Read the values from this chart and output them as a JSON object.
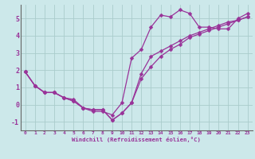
{
  "background_color": "#cce8ea",
  "grid_color": "#aacccc",
  "line_color": "#993399",
  "marker": "D",
  "markersize": 2.5,
  "linewidth": 0.9,
  "xlim": [
    -0.5,
    23.5
  ],
  "ylim": [
    -1.5,
    5.8
  ],
  "xticks": [
    0,
    1,
    2,
    3,
    4,
    5,
    6,
    7,
    8,
    9,
    10,
    11,
    12,
    13,
    14,
    15,
    16,
    17,
    18,
    19,
    20,
    21,
    22,
    23
  ],
  "yticks": [
    -1,
    0,
    1,
    2,
    3,
    4,
    5
  ],
  "xlabel": "Windchill (Refroidissement éolien,°C)",
  "series": [
    [
      1.9,
      1.1,
      0.7,
      0.7,
      0.4,
      0.3,
      -0.2,
      -0.4,
      -0.4,
      -0.6,
      0.1,
      2.7,
      3.2,
      4.5,
      5.2,
      5.1,
      5.5,
      5.3,
      4.5,
      4.5,
      4.4,
      4.4,
      5.0,
      5.3
    ],
    [
      1.9,
      1.1,
      0.7,
      0.7,
      0.4,
      0.2,
      -0.2,
      -0.3,
      -0.3,
      -0.9,
      -0.5,
      0.1,
      1.8,
      2.8,
      3.1,
      3.4,
      3.7,
      4.0,
      4.2,
      4.4,
      4.6,
      4.8,
      4.9,
      5.1
    ],
    [
      1.9,
      1.1,
      0.7,
      0.7,
      0.4,
      0.2,
      -0.2,
      -0.3,
      -0.3,
      -0.9,
      -0.5,
      0.1,
      1.5,
      2.2,
      2.8,
      3.2,
      3.5,
      3.9,
      4.1,
      4.3,
      4.5,
      4.7,
      4.9,
      5.1
    ]
  ]
}
